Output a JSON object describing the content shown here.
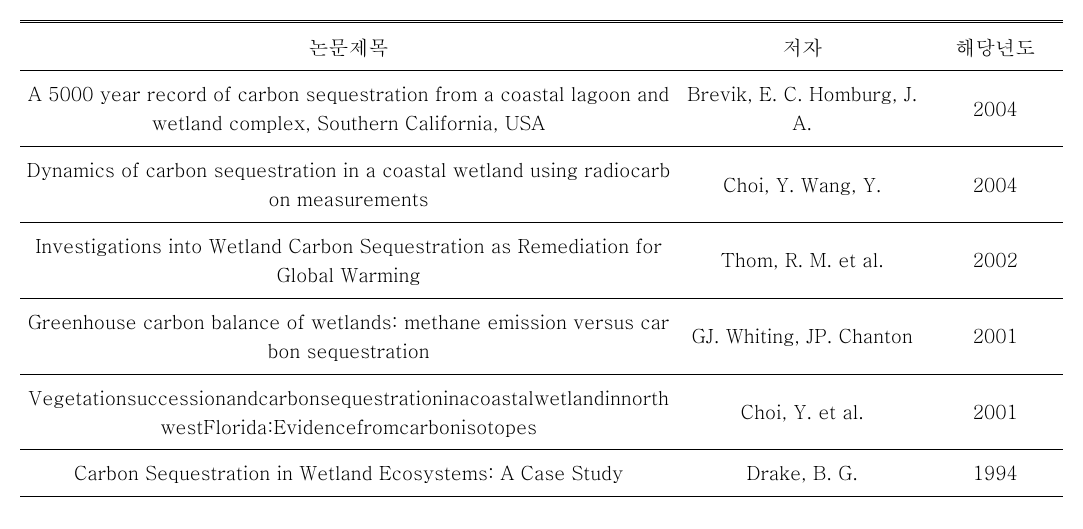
{
  "table": {
    "columns": [
      {
        "key": "title",
        "label": "논문제목"
      },
      {
        "key": "author",
        "label": "저자"
      },
      {
        "key": "year",
        "label": "해당년도"
      }
    ],
    "rows": [
      {
        "title": "A 5000  year record of carbon sequestration from a coastal lagoon and wetland  complex, Southern California, USA",
        "author": "Brevik,  E. C. Homburg, J. A.",
        "year": "2004"
      },
      {
        "title": "Dynamics of carbon  sequestration in a coastal wetland using radiocarbon measurements",
        "author": "Choi, Y. Wang, Y.",
        "year": "2004"
      },
      {
        "title": "Investigations into Wetland  Carbon Sequestration as Remediation for Global Warming",
        "author": "Thom, R. M. et al.",
        "year": "2002"
      },
      {
        "title": "Greenhouse carbon balance of wetlands: methane emission versus carbon sequestration",
        "author": "GJ. Whiting, JP. Chanton",
        "year": "2001"
      },
      {
        "title": "VegetationsuccessionandcarbonsequestrationinacoastalwetlandinnorthwestFlorida:Evidencefromcarbonisotopes",
        "author": "Choi, Y. et al.",
        "year": "2001"
      },
      {
        "title": "Carbon Sequestration in  Wetland Ecosystems: A Case Study",
        "author": "Drake, B. G.",
        "year": "1994"
      }
    ],
    "styles": {
      "border_color": "#000000",
      "background_color": "#ffffff",
      "text_color": "#000000",
      "header_fontsize": 20,
      "body_fontsize": 19,
      "col_widths_pct": [
        63,
        24,
        13
      ]
    }
  }
}
